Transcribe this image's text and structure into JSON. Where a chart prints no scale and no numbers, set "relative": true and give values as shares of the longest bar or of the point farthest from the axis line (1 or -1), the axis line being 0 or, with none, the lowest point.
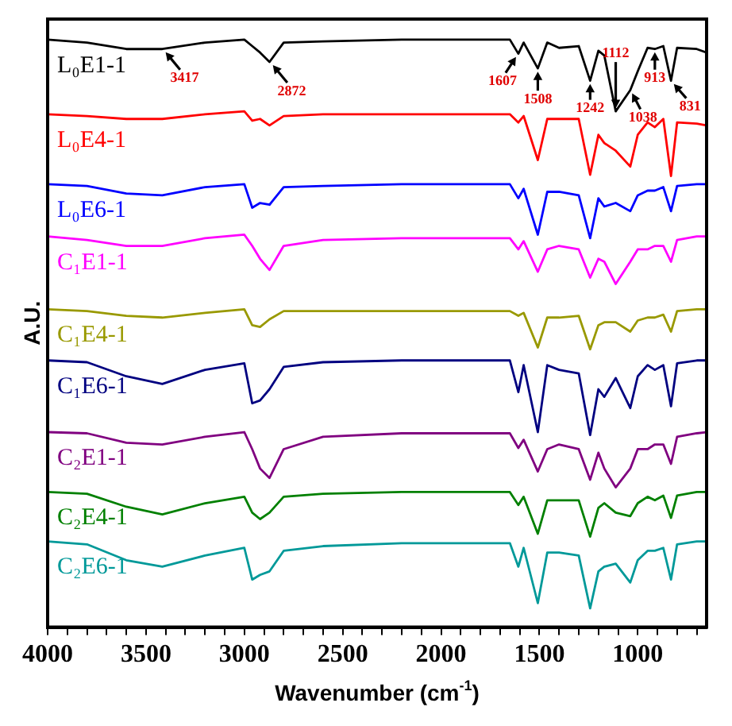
{
  "chart_data": {
    "type": "line",
    "xlabel": "Wavenumber (cm$^{-1}$)",
    "ylabel": "A.U.",
    "relative": true,
    "legend": "left",
    "marker": "none",
    "x": [
      4000,
      3800,
      3600,
      3417,
      3200,
      3000,
      2960,
      2920,
      2872,
      2800,
      2600,
      2200,
      1800,
      1650,
      1607,
      1580,
      1508,
      1460,
      1400,
      1300,
      1242,
      1200,
      1170,
      1112,
      1038,
      1000,
      950,
      913,
      870,
      831,
      800,
      700,
      650
    ],
    "xlim": [
      4000,
      650
    ],
    "xticks": [
      4000,
      {
        "value": 3900,
        "label": null
      },
      {
        "value": 3800,
        "label": null
      },
      {
        "value": 3700,
        "label": null
      },
      {
        "value": 3600,
        "label": null
      },
      3500,
      {
        "value": 3400,
        "label": null
      },
      {
        "value": 3300,
        "label": null
      },
      {
        "value": 3200,
        "label": null
      },
      {
        "value": 3100,
        "label": null
      },
      3000,
      {
        "value": 2900,
        "label": null
      },
      {
        "value": 2800,
        "label": null
      },
      {
        "value": 2700,
        "label": null
      },
      {
        "value": 2600,
        "label": null
      },
      2500,
      {
        "value": 2400,
        "label": null
      },
      {
        "value": 2300,
        "label": null
      },
      {
        "value": 2200,
        "label": null
      },
      {
        "value": 2100,
        "label": null
      },
      2000,
      {
        "value": 1900,
        "label": null
      },
      {
        "value": 1800,
        "label": null
      },
      {
        "value": 1700,
        "label": null
      },
      {
        "value": 1600,
        "label": null
      },
      1500,
      {
        "value": 1400,
        "label": null
      },
      {
        "value": 1300,
        "label": null
      },
      {
        "value": 1200,
        "label": null
      },
      {
        "value": 1100,
        "label": null
      },
      1000,
      {
        "value": 900,
        "label": null
      },
      {
        "value": 800,
        "label": null
      },
      {
        "value": 700,
        "label": null
      }
    ],
    "series": [
      {
        "name": "L₀E1-1",
        "color": "#000000",
        "values": [
          1,
          0.995,
          0.984,
          0.984,
          0.995,
          1,
          0.989,
          0.978,
          0.962,
          0.995,
          0.997,
          1,
          1,
          1,
          0.976,
          0.995,
          0.951,
          0.995,
          0.986,
          0.989,
          0.93,
          0.981,
          0.973,
          0.878,
          0.914,
          0.946,
          0.986,
          0.984,
          0.989,
          0.93,
          0.986,
          0.984,
          0.978
        ]
      },
      {
        "name": "L₀E4-1",
        "color": "#ff0000",
        "values": [
          0.873,
          0.87,
          0.865,
          0.865,
          0.873,
          0.878,
          0.862,
          0.865,
          0.854,
          0.87,
          0.873,
          0.873,
          0.873,
          0.873,
          0.859,
          0.87,
          0.795,
          0.865,
          0.865,
          0.865,
          0.77,
          0.838,
          0.824,
          0.811,
          0.784,
          0.838,
          0.859,
          0.851,
          0.865,
          0.768,
          0.859,
          0.857,
          0.854
        ]
      },
      {
        "name": "L₀E6-1",
        "color": "#0000ff",
        "values": [
          0.754,
          0.751,
          0.738,
          0.735,
          0.749,
          0.754,
          0.714,
          0.722,
          0.719,
          0.749,
          0.751,
          0.754,
          0.754,
          0.754,
          0.73,
          0.746,
          0.668,
          0.741,
          0.741,
          0.735,
          0.662,
          0.73,
          0.716,
          0.722,
          0.708,
          0.735,
          0.743,
          0.743,
          0.749,
          0.708,
          0.751,
          0.754,
          0.754
        ]
      },
      {
        "name": "C₁E1-1",
        "color": "#ff00ff",
        "values": [
          0.665,
          0.659,
          0.649,
          0.649,
          0.662,
          0.668,
          0.649,
          0.627,
          0.608,
          0.649,
          0.659,
          0.662,
          0.662,
          0.662,
          0.643,
          0.657,
          0.605,
          0.643,
          0.649,
          0.643,
          0.595,
          0.627,
          0.622,
          0.584,
          0.622,
          0.643,
          0.643,
          0.649,
          0.649,
          0.622,
          0.659,
          0.665,
          0.665
        ]
      },
      {
        "name": "C₁E4-1",
        "color": "#999900",
        "values": [
          0.541,
          0.538,
          0.53,
          0.527,
          0.535,
          0.541,
          0.514,
          0.511,
          0.524,
          0.538,
          0.538,
          0.538,
          0.538,
          0.538,
          0.53,
          0.535,
          0.476,
          0.527,
          0.527,
          0.53,
          0.473,
          0.514,
          0.519,
          0.519,
          0.503,
          0.522,
          0.527,
          0.527,
          0.532,
          0.503,
          0.538,
          0.541,
          0.541
        ]
      },
      {
        "name": "C₁E6-1",
        "color": "#000080",
        "values": [
          0.454,
          0.451,
          0.427,
          0.414,
          0.438,
          0.449,
          0.381,
          0.386,
          0.405,
          0.443,
          0.451,
          0.454,
          0.454,
          0.454,
          0.4,
          0.446,
          0.332,
          0.446,
          0.438,
          0.432,
          0.327,
          0.405,
          0.392,
          0.424,
          0.373,
          0.427,
          0.446,
          0.438,
          0.446,
          0.376,
          0.449,
          0.454,
          0.454
        ]
      },
      {
        "name": "C₂E1-1",
        "color": "#800080",
        "values": [
          0.332,
          0.33,
          0.314,
          0.311,
          0.324,
          0.332,
          0.303,
          0.27,
          0.254,
          0.303,
          0.324,
          0.33,
          0.33,
          0.33,
          0.305,
          0.319,
          0.265,
          0.303,
          0.311,
          0.303,
          0.251,
          0.297,
          0.27,
          0.238,
          0.27,
          0.303,
          0.303,
          0.311,
          0.311,
          0.278,
          0.324,
          0.33,
          0.332
        ]
      },
      {
        "name": "C₂E4-1",
        "color": "#008000",
        "values": [
          0.23,
          0.227,
          0.205,
          0.192,
          0.211,
          0.222,
          0.195,
          0.184,
          0.195,
          0.222,
          0.227,
          0.23,
          0.23,
          0.23,
          0.208,
          0.222,
          0.159,
          0.216,
          0.216,
          0.216,
          0.154,
          0.203,
          0.211,
          0.195,
          0.189,
          0.211,
          0.222,
          0.216,
          0.224,
          0.186,
          0.224,
          0.23,
          0.23
        ]
      },
      {
        "name": "C₂E6-1",
        "color": "#009999",
        "values": [
          0.146,
          0.141,
          0.114,
          0.103,
          0.122,
          0.135,
          0.081,
          0.089,
          0.095,
          0.13,
          0.138,
          0.143,
          0.143,
          0.143,
          0.103,
          0.135,
          0.041,
          0.127,
          0.127,
          0.122,
          0.032,
          0.095,
          0.103,
          0.108,
          0.076,
          0.114,
          0.13,
          0.13,
          0.135,
          0.081,
          0.141,
          0.146,
          0.146
        ]
      }
    ],
    "annotations": [
      {
        "text": "3417",
        "x": 3417,
        "y": 0.984
      },
      {
        "text": "2872",
        "x": 2872,
        "y": 0.962
      },
      {
        "text": "1607",
        "x": 1607,
        "y": 0.976
      },
      {
        "text": "1508",
        "x": 1508,
        "y": 0.951
      },
      {
        "text": "1242",
        "x": 1242,
        "y": 0.93
      },
      {
        "text": "1112",
        "x": 1112,
        "y": 0.878
      },
      {
        "text": "1038",
        "x": 1038,
        "y": 0.914
      },
      {
        "text": "913",
        "x": 913,
        "y": 0.984
      },
      {
        "text": "831",
        "x": 831,
        "y": 0.93
      }
    ]
  }
}
